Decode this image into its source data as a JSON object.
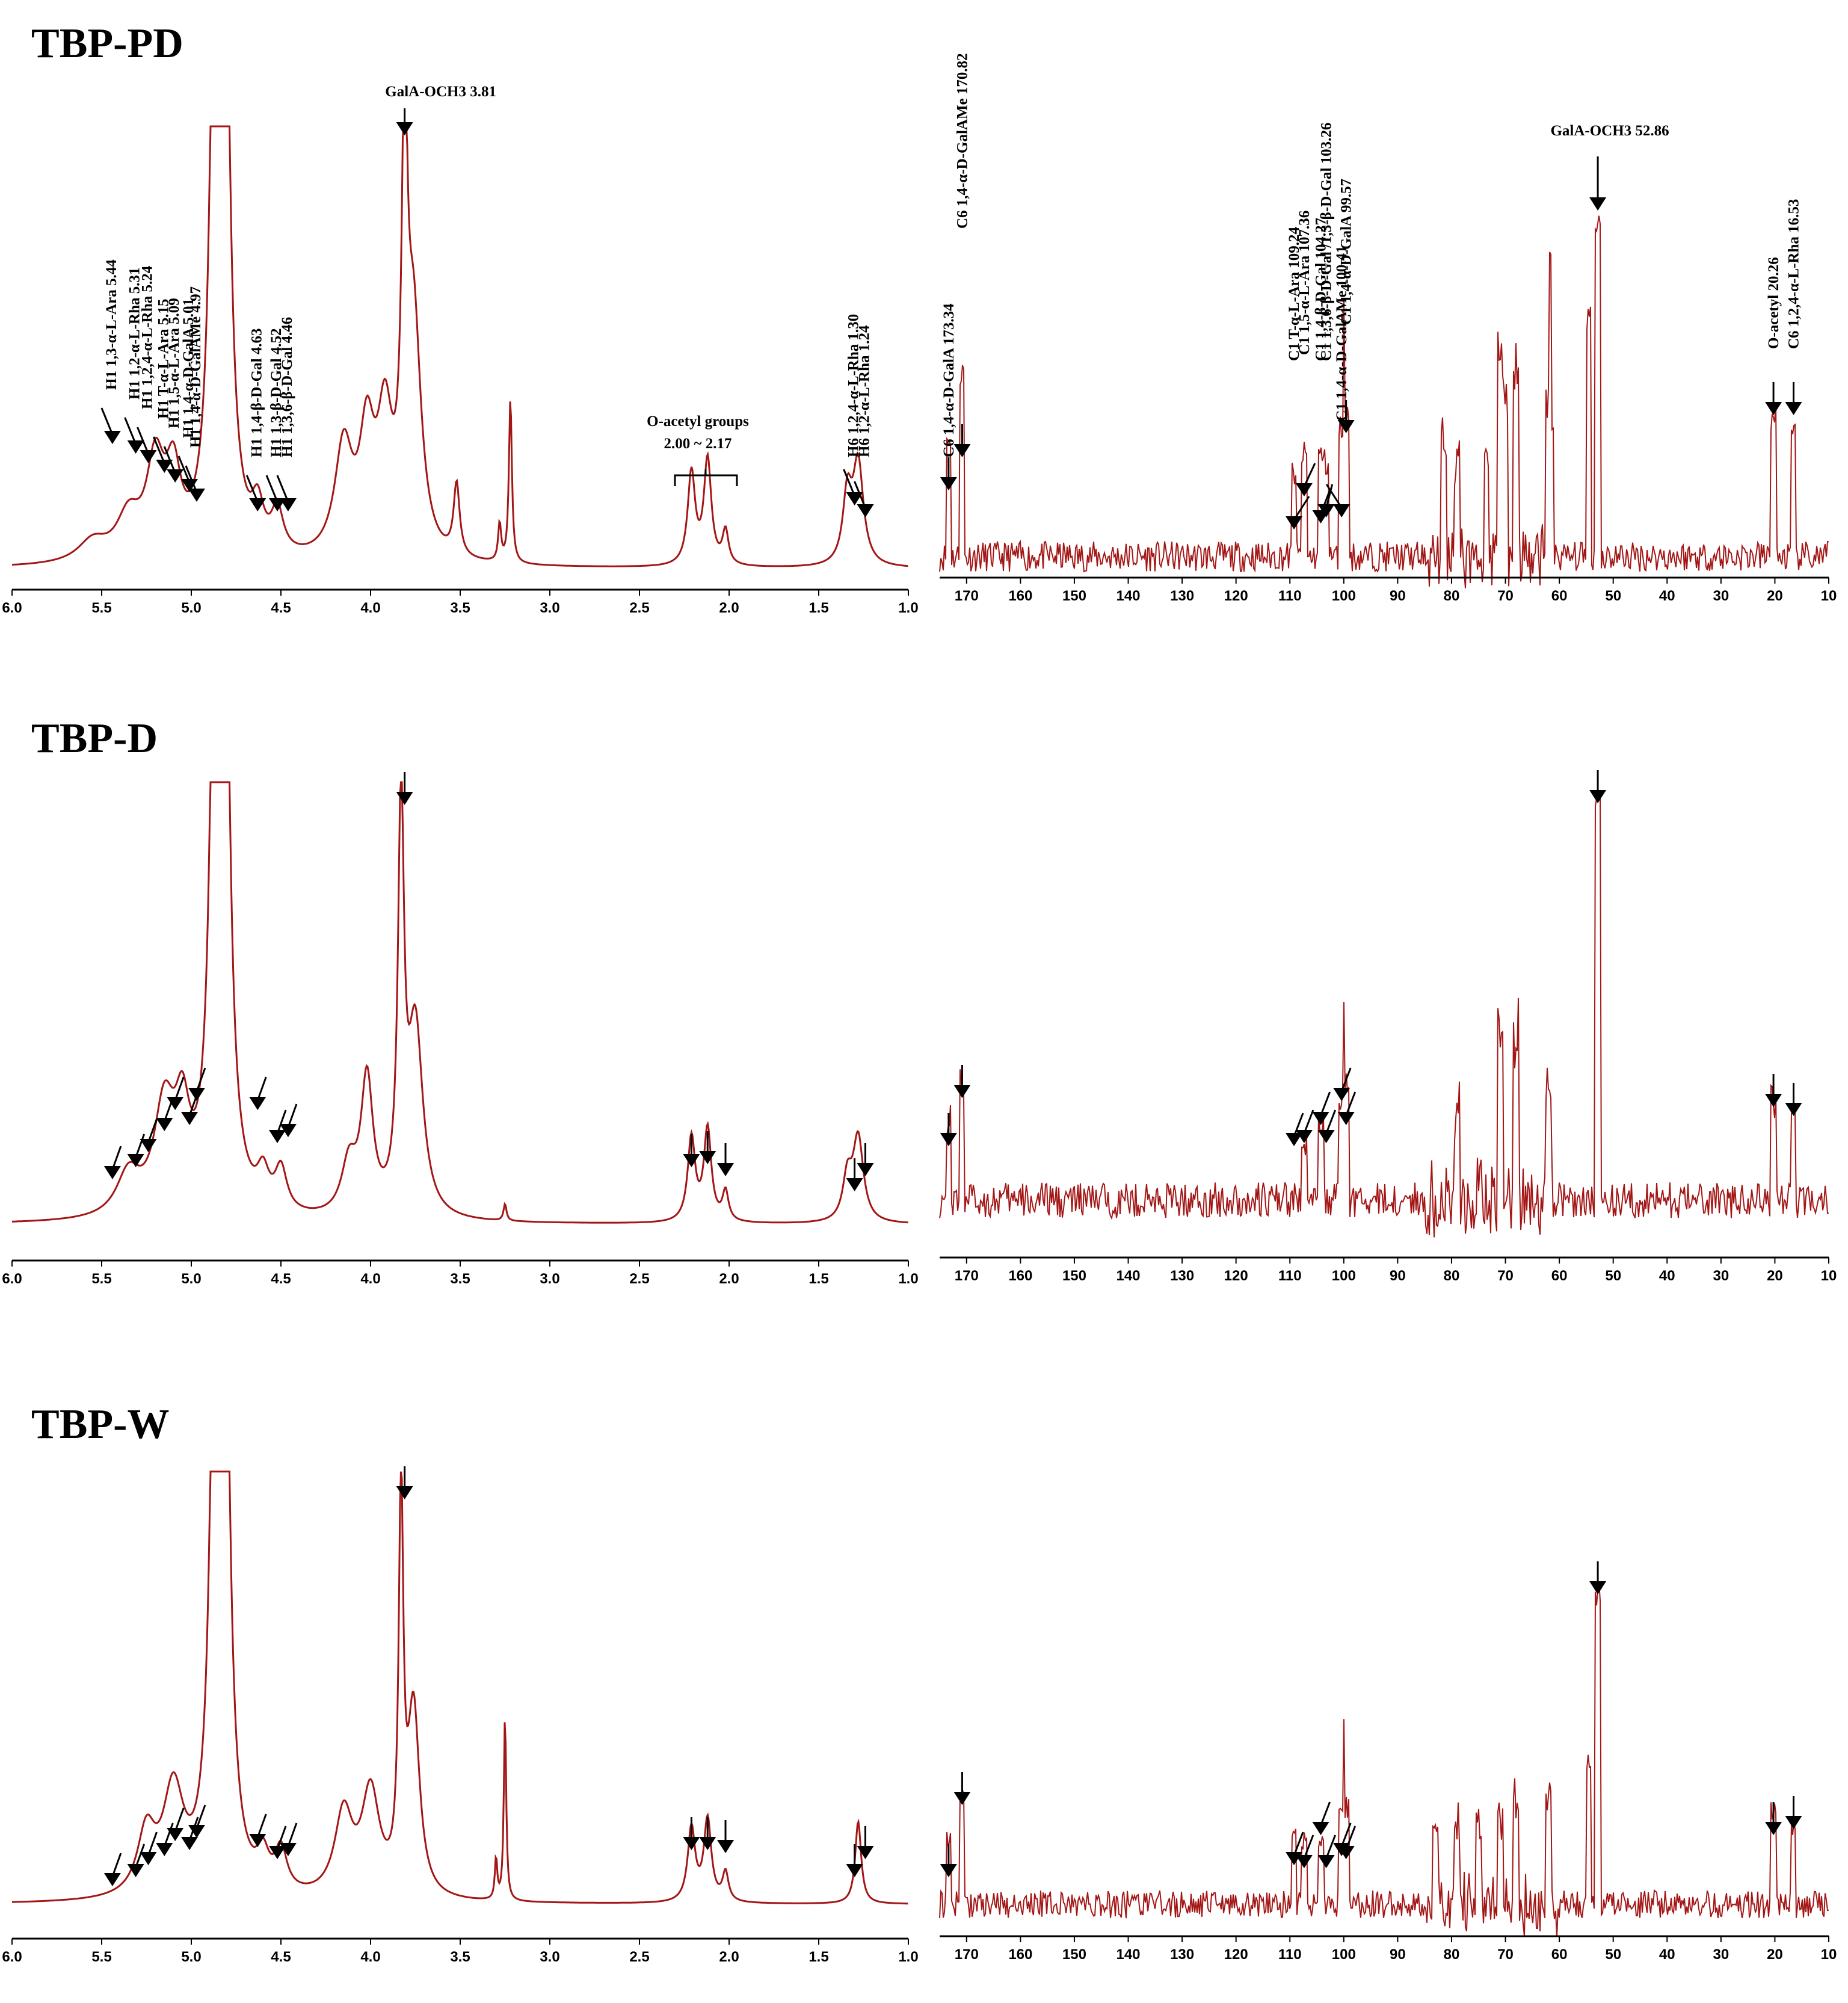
{
  "chart_data": [
    {
      "id": "tbp-pd",
      "title": "TBP-PD",
      "h1": {
        "type": "line",
        "nucleus": "1H",
        "xlim": [
          6.0,
          1.0
        ],
        "ticks": [
          "6.0",
          "5.5",
          "5.0",
          "4.5",
          "4.0",
          "3.5",
          "3.0",
          "2.5",
          "2.0",
          "1.5",
          "1.0"
        ],
        "peaks": [
          {
            "x": 4.82,
            "h": 1.75,
            "w": 0.03
          },
          {
            "x": 4.86,
            "h": 1.75,
            "w": 0.03
          },
          {
            "x": 3.81,
            "h": 0.95,
            "w": 0.018
          },
          {
            "x": 3.76,
            "h": 0.55,
            "w": 0.05
          },
          {
            "x": 3.22,
            "h": 0.39,
            "w": 0.01
          },
          {
            "x": 3.28,
            "h": 0.09,
            "w": 0.01
          },
          {
            "x": 3.52,
            "h": 0.17,
            "w": 0.02
          },
          {
            "x": 4.15,
            "h": 0.26,
            "w": 0.06
          },
          {
            "x": 4.02,
            "h": 0.27,
            "w": 0.05
          },
          {
            "x": 3.92,
            "h": 0.3,
            "w": 0.05
          },
          {
            "x": 4.52,
            "h": 0.1,
            "w": 0.04
          },
          {
            "x": 4.63,
            "h": 0.1,
            "w": 0.04
          },
          {
            "x": 5.2,
            "h": 0.22,
            "w": 0.06
          },
          {
            "x": 5.1,
            "h": 0.18,
            "w": 0.05
          },
          {
            "x": 5.35,
            "h": 0.1,
            "w": 0.08
          },
          {
            "x": 5.55,
            "h": 0.05,
            "w": 0.1
          },
          {
            "x": 2.21,
            "h": 0.22,
            "w": 0.025
          },
          {
            "x": 2.12,
            "h": 0.25,
            "w": 0.025
          },
          {
            "x": 2.02,
            "h": 0.08,
            "w": 0.02
          },
          {
            "x": 1.34,
            "h": 0.16,
            "w": 0.03
          },
          {
            "x": 1.28,
            "h": 0.24,
            "w": 0.035
          }
        ],
        "annotations": [
          {
            "x": 5.44,
            "label": "H1  1,3-α-L-Ara   5.44"
          },
          {
            "x": 5.31,
            "label": "H1  1,2-α-L-Rha   5.31"
          },
          {
            "x": 5.24,
            "label": "H1  1,2,4-α-L-Rha   5.24"
          },
          {
            "x": 5.15,
            "label": "H1   T-α-L-Ara   5.15"
          },
          {
            "x": 5.09,
            "label": "H1   1,5-α-L-Ara   5.09"
          },
          {
            "x": 5.01,
            "label": "H1   1,4-α-D-GalA   5.01"
          },
          {
            "x": 4.97,
            "label": "H1   1,4-α-D-GalAMe   4.97"
          },
          {
            "x": 4.63,
            "label": "H1   1,4-β-D-Gal  4.63"
          },
          {
            "x": 4.52,
            "label": "H1   1,3-β-D-Gal  4.52"
          },
          {
            "x": 4.46,
            "label": "H1   1,3,6-β-D-Gal  4.46"
          },
          {
            "x": 1.3,
            "label": "H6   1,2,4-α-L-Rha   1.30"
          },
          {
            "x": 1.24,
            "label": "H6   1,2-α-L-Rha   1.24"
          }
        ],
        "top_label": "GalA-OCH3   3.81",
        "bracket_label": "O-acetyl  groups",
        "bracket_range": "2.00 ~ 2.17"
      },
      "c13": {
        "type": "line",
        "nucleus": "13C",
        "xlim": [
          175,
          10
        ],
        "ticks": [
          "170",
          "160",
          "150",
          "140",
          "130",
          "120",
          "110",
          "100",
          "90",
          "80",
          "70",
          "60",
          "50",
          "40",
          "30",
          "20",
          "10"
        ],
        "peaks": [
          {
            "x": 173.34,
            "h": 0.35
          },
          {
            "x": 170.82,
            "h": 0.55
          },
          {
            "x": 109.24,
            "h": 0.25
          },
          {
            "x": 107.36,
            "h": 0.3
          },
          {
            "x": 104.27,
            "h": 0.3
          },
          {
            "x": 103.26,
            "h": 0.28
          },
          {
            "x": 100.41,
            "h": 0.38
          },
          {
            "x": 99.57,
            "h": 0.42
          },
          {
            "x": 81.5,
            "h": 0.35
          },
          {
            "x": 79,
            "h": 0.25
          },
          {
            "x": 73.5,
            "h": 0.3
          },
          {
            "x": 71,
            "h": 0.6
          },
          {
            "x": 70,
            "h": 0.45
          },
          {
            "x": 68,
            "h": 0.55
          },
          {
            "x": 62,
            "h": 0.45
          },
          {
            "x": 61.5,
            "h": 0.4
          },
          {
            "x": 54.5,
            "h": 0.72
          },
          {
            "x": 52.86,
            "h": 1.0
          },
          {
            "x": 20.26,
            "h": 0.42
          },
          {
            "x": 16.53,
            "h": 0.35
          }
        ],
        "annotations": [
          {
            "x": 173.34,
            "label": "C6  1,4-α-D-GalA   173.34"
          },
          {
            "x": 170.82,
            "label": "C6  1,4-α-D-GalAMe    170.82"
          },
          {
            "x": 109.24,
            "label": "C1   T-α-L-Ara   109.24"
          },
          {
            "x": 107.36,
            "label": "C1  1,5-α-L-Ara   107.36"
          },
          {
            "x": 104.27,
            "label": "C1   1,4-β-D-Gal  104.27"
          },
          {
            "x": 103.26,
            "label": "C1   1,3,6-β-D-Gal  /1,3-β-D-Gal  103.26"
          },
          {
            "x": 99.57,
            "label": "C1   1,4-α-D-GalA  99.57"
          },
          {
            "x": 100.41,
            "label": "C1   1,4-α-D-GalAMe  100.41"
          },
          {
            "x": 20.26,
            "label": "O-acetyl 20.26"
          },
          {
            "x": 16.53,
            "label": "C6 1,2,4-α-L-Rha  16.53"
          }
        ],
        "top_label": "GalA-OCH3    52.86"
      }
    },
    {
      "id": "tbp-d",
      "title": "TBP-D",
      "h1": {
        "type": "line",
        "nucleus": "1H",
        "xlim": [
          6.0,
          1.0
        ],
        "ticks": [
          "6.0",
          "5.5",
          "5.0",
          "4.5",
          "4.0",
          "3.5",
          "3.0",
          "2.5",
          "2.0",
          "1.5",
          "1.0"
        ],
        "peaks": [
          {
            "x": 4.82,
            "h": 1.75,
            "w": 0.03
          },
          {
            "x": 4.86,
            "h": 1.75,
            "w": 0.03
          },
          {
            "x": 3.83,
            "h": 0.95,
            "w": 0.02
          },
          {
            "x": 3.75,
            "h": 0.45,
            "w": 0.05
          },
          {
            "x": 4.02,
            "h": 0.32,
            "w": 0.04
          },
          {
            "x": 4.12,
            "h": 0.12,
            "w": 0.05
          },
          {
            "x": 3.25,
            "h": 0.04,
            "w": 0.01
          },
          {
            "x": 4.5,
            "h": 0.1,
            "w": 0.04
          },
          {
            "x": 4.6,
            "h": 0.08,
            "w": 0.04
          },
          {
            "x": 5.15,
            "h": 0.25,
            "w": 0.07
          },
          {
            "x": 5.05,
            "h": 0.2,
            "w": 0.05
          },
          {
            "x": 5.35,
            "h": 0.1,
            "w": 0.08
          },
          {
            "x": 2.21,
            "h": 0.2,
            "w": 0.025
          },
          {
            "x": 2.12,
            "h": 0.22,
            "w": 0.025
          },
          {
            "x": 2.02,
            "h": 0.07,
            "w": 0.02
          },
          {
            "x": 1.34,
            "h": 0.1,
            "w": 0.03
          },
          {
            "x": 1.28,
            "h": 0.2,
            "w": 0.035
          }
        ],
        "arrows_at": [
          5.44,
          5.31,
          5.24,
          5.15,
          5.09,
          5.01,
          4.97,
          4.63,
          4.52,
          4.46,
          3.81,
          2.21,
          2.12,
          2.02,
          1.3,
          1.24
        ]
      },
      "c13": {
        "type": "line",
        "nucleus": "13C",
        "xlim": [
          175,
          10
        ],
        "ticks": [
          "170",
          "160",
          "150",
          "140",
          "130",
          "120",
          "110",
          "100",
          "90",
          "80",
          "70",
          "60",
          "50",
          "40",
          "30",
          "20",
          "10"
        ],
        "peaks": [
          {
            "x": 173.34,
            "h": 0.2
          },
          {
            "x": 170.82,
            "h": 0.3
          },
          {
            "x": 107.36,
            "h": 0.15
          },
          {
            "x": 104.27,
            "h": 0.18
          },
          {
            "x": 100.41,
            "h": 0.25
          },
          {
            "x": 99.57,
            "h": 0.28
          },
          {
            "x": 79,
            "h": 0.2
          },
          {
            "x": 71,
            "h": 0.45
          },
          {
            "x": 68,
            "h": 0.45
          },
          {
            "x": 62,
            "h": 0.3
          },
          {
            "x": 52.86,
            "h": 1.0
          },
          {
            "x": 20.26,
            "h": 0.25
          },
          {
            "x": 16.53,
            "h": 0.2
          }
        ],
        "arrows_at": [
          173.34,
          170.82,
          109.24,
          107.36,
          104.27,
          103.26,
          99.57,
          100.41,
          52.86,
          20.26,
          16.53
        ]
      }
    },
    {
      "id": "tbp-w",
      "title": "TBP-W",
      "h1": {
        "type": "line",
        "nucleus": "1H",
        "xlim": [
          6.0,
          1.0
        ],
        "ticks": [
          "6.0",
          "5.5",
          "5.0",
          "4.5",
          "4.0",
          "3.5",
          "3.0",
          "2.5",
          "2.0",
          "1.5",
          "1.0"
        ],
        "peaks": [
          {
            "x": 4.82,
            "h": 1.75,
            "w": 0.03
          },
          {
            "x": 4.86,
            "h": 1.75,
            "w": 0.03
          },
          {
            "x": 3.83,
            "h": 0.95,
            "w": 0.015
          },
          {
            "x": 3.76,
            "h": 0.45,
            "w": 0.04
          },
          {
            "x": 3.25,
            "h": 0.45,
            "w": 0.008
          },
          {
            "x": 3.3,
            "h": 0.1,
            "w": 0.008
          },
          {
            "x": 4.0,
            "h": 0.25,
            "w": 0.06
          },
          {
            "x": 4.15,
            "h": 0.2,
            "w": 0.06
          },
          {
            "x": 4.5,
            "h": 0.1,
            "w": 0.04
          },
          {
            "x": 4.6,
            "h": 0.08,
            "w": 0.04
          },
          {
            "x": 5.1,
            "h": 0.25,
            "w": 0.07
          },
          {
            "x": 5.25,
            "h": 0.15,
            "w": 0.06
          },
          {
            "x": 2.21,
            "h": 0.18,
            "w": 0.025
          },
          {
            "x": 2.12,
            "h": 0.2,
            "w": 0.025
          },
          {
            "x": 2.02,
            "h": 0.07,
            "w": 0.02
          },
          {
            "x": 1.28,
            "h": 0.2,
            "w": 0.02
          }
        ],
        "arrows_at": [
          5.44,
          5.31,
          5.24,
          5.15,
          5.09,
          5.01,
          4.97,
          4.63,
          4.52,
          4.46,
          3.81,
          2.21,
          2.12,
          2.02,
          1.3,
          1.24
        ]
      },
      "c13": {
        "type": "line",
        "nucleus": "13C",
        "xlim": [
          175,
          10
        ],
        "ticks": [
          "170",
          "160",
          "150",
          "140",
          "130",
          "120",
          "110",
          "100",
          "90",
          "80",
          "70",
          "60",
          "50",
          "40",
          "30",
          "20",
          "10"
        ],
        "peaks": [
          {
            "x": 173.34,
            "h": 0.22
          },
          {
            "x": 170.82,
            "h": 0.35
          },
          {
            "x": 109.24,
            "h": 0.2
          },
          {
            "x": 107.36,
            "h": 0.2
          },
          {
            "x": 104.27,
            "h": 0.22
          },
          {
            "x": 100.41,
            "h": 0.3
          },
          {
            "x": 99.57,
            "h": 0.32
          },
          {
            "x": 83,
            "h": 0.2
          },
          {
            "x": 79,
            "h": 0.25
          },
          {
            "x": 75,
            "h": 0.25
          },
          {
            "x": 71,
            "h": 0.3
          },
          {
            "x": 68,
            "h": 0.35
          },
          {
            "x": 62,
            "h": 0.35
          },
          {
            "x": 54.5,
            "h": 0.45
          },
          {
            "x": 52.86,
            "h": 1.0
          },
          {
            "x": 20.26,
            "h": 0.3
          },
          {
            "x": 16.53,
            "h": 0.25
          }
        ],
        "arrows_at": [
          173.34,
          170.82,
          109.24,
          107.36,
          104.27,
          103.26,
          99.57,
          100.41,
          52.86,
          20.26,
          16.53
        ]
      }
    }
  ],
  "colors": {
    "spectrum": "#a31616",
    "axis": "#000000",
    "arrow": "#000000"
  }
}
